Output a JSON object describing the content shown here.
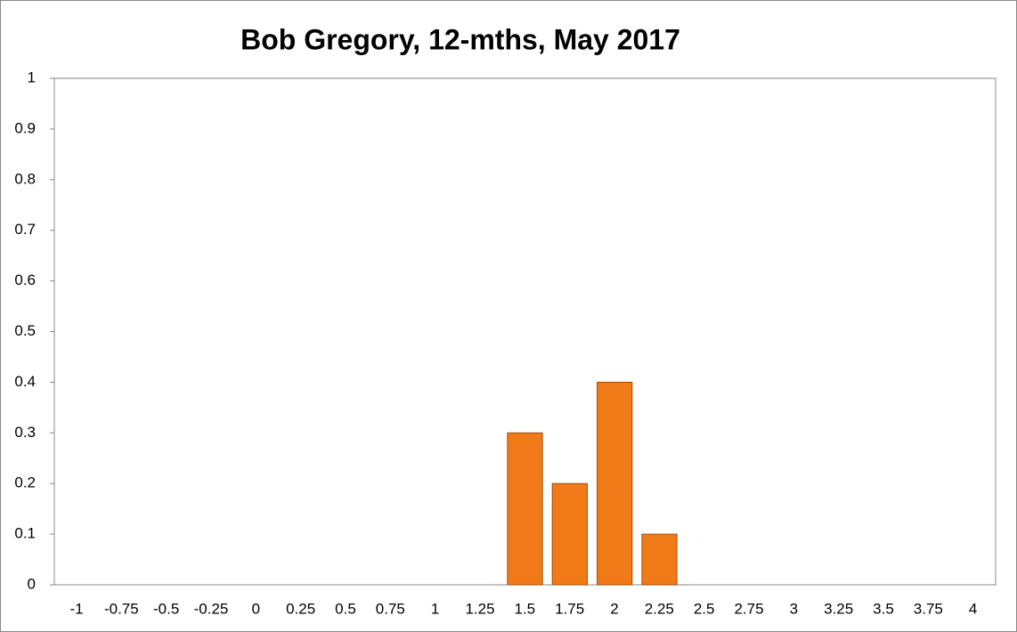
{
  "chart_data": {
    "type": "bar",
    "title": "Bob Gregory, 12-mths, May 2017",
    "categories": [
      "-1",
      "-0.75",
      "-0.5",
      "-0.25",
      "0",
      "0.25",
      "0.5",
      "0.75",
      "1",
      "1.25",
      "1.5",
      "1.75",
      "2",
      "2.25",
      "2.5",
      "2.75",
      "3",
      "3.25",
      "3.5",
      "3.75",
      "4"
    ],
    "values": [
      0,
      0,
      0,
      0,
      0,
      0,
      0,
      0,
      0,
      0,
      0.3,
      0.2,
      0.4,
      0.1,
      0,
      0,
      0,
      0,
      0,
      0,
      0
    ],
    "color": "#f07a18",
    "ylim": [
      0,
      1
    ],
    "yticks": [
      0,
      0.1,
      0.2,
      0.3,
      0.4,
      0.5,
      0.6,
      0.7,
      0.8,
      0.9,
      1
    ],
    "grid": false
  }
}
